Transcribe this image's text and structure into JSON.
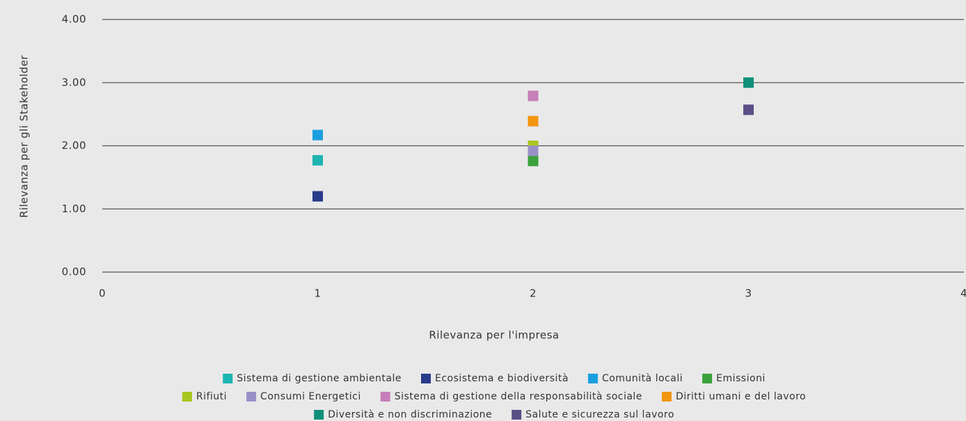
{
  "chart_data": {
    "type": "scatter",
    "x_label": "Rilevanza per l'impresa",
    "y_label": "Rilevanza per gli Stakeholder",
    "xlim": [
      0,
      4
    ],
    "xticks": [
      0,
      1,
      2,
      3,
      4
    ],
    "ylim": [
      0,
      4
    ],
    "yticks": [
      {
        "value": 0,
        "label": "0.00"
      },
      {
        "value": 1,
        "label": "1.00"
      },
      {
        "value": 2,
        "label": "2.00"
      },
      {
        "value": 3,
        "label": "3.00"
      },
      {
        "value": 4,
        "label": "4.00"
      }
    ],
    "grid": true,
    "legend": "bottom",
    "series": [
      {
        "name": "Sistema di gestione ambientale",
        "color": "#1db5b0",
        "x": [
          1
        ],
        "values": [
          1.77
        ]
      },
      {
        "name": "Ecosistema e biodiversità",
        "color": "#283a8a",
        "x": [
          1
        ],
        "values": [
          1.2
        ]
      },
      {
        "name": "Comunità locali",
        "color": "#1a9fe0",
        "x": [
          1
        ],
        "values": [
          2.17
        ]
      },
      {
        "name": "Emissioni",
        "color": "#3aa23c",
        "x": [
          2
        ],
        "values": [
          1.76
        ]
      },
      {
        "name": "Rifiuti",
        "color": "#a9c61e",
        "x": [
          2
        ],
        "values": [
          2.0
        ]
      },
      {
        "name": "Consumi Energetici",
        "color": "#9a90c8",
        "x": [
          2
        ],
        "values": [
          1.92
        ]
      },
      {
        "name": "Sistema di gestione della responsabilità sociale",
        "color": "#c67fb8",
        "x": [
          2
        ],
        "values": [
          2.79
        ]
      },
      {
        "name": "Diritti umani e del lavoro",
        "color": "#f2950f",
        "x": [
          2
        ],
        "values": [
          2.39
        ]
      },
      {
        "name": "Diversità e non discriminazione",
        "color": "#10907a",
        "x": [
          3
        ],
        "values": [
          3.0
        ]
      },
      {
        "name": "Salute e sicurezza sul lavoro",
        "color": "#5a4f86",
        "x": [
          3
        ],
        "values": [
          2.57
        ]
      }
    ]
  }
}
